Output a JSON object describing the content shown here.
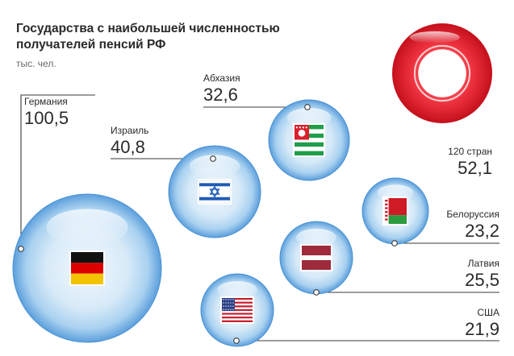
{
  "header": {
    "title": "Государства с наибольшей численностью получателей пенсий РФ",
    "subtitle": "тыс. чел."
  },
  "colors": {
    "bubble_light": "#dcecf8",
    "bubble_mid": "#8fc3ea",
    "bubble_edge": "#4a92d4",
    "red": "#e11f2d",
    "leader": "#3a3a3a"
  },
  "chart_data": {
    "type": "bubble",
    "unit": "тыс. чел.",
    "points": [
      {
        "country": "Германия",
        "value": 100.5,
        "value_label": "100,5",
        "flag": "germany-flag"
      },
      {
        "country": "Израиль",
        "value": 40.8,
        "value_label": "40,8",
        "flag": "israel-flag"
      },
      {
        "country": "Абхазия",
        "value": 32.6,
        "value_label": "32,6",
        "flag": "abkhazia-flag"
      },
      {
        "country": "120 стран",
        "value": 52.1,
        "value_label": "52,1",
        "flag": "none"
      },
      {
        "country": "Белоруссия",
        "value": 23.2,
        "value_label": "23,2",
        "flag": "belarus-flag"
      },
      {
        "country": "Латвия",
        "value": 25.5,
        "value_label": "25,5",
        "flag": "latvia-flag"
      },
      {
        "country": "США",
        "value": 21.9,
        "value_label": "21,9",
        "flag": "usa-flag"
      }
    ]
  }
}
